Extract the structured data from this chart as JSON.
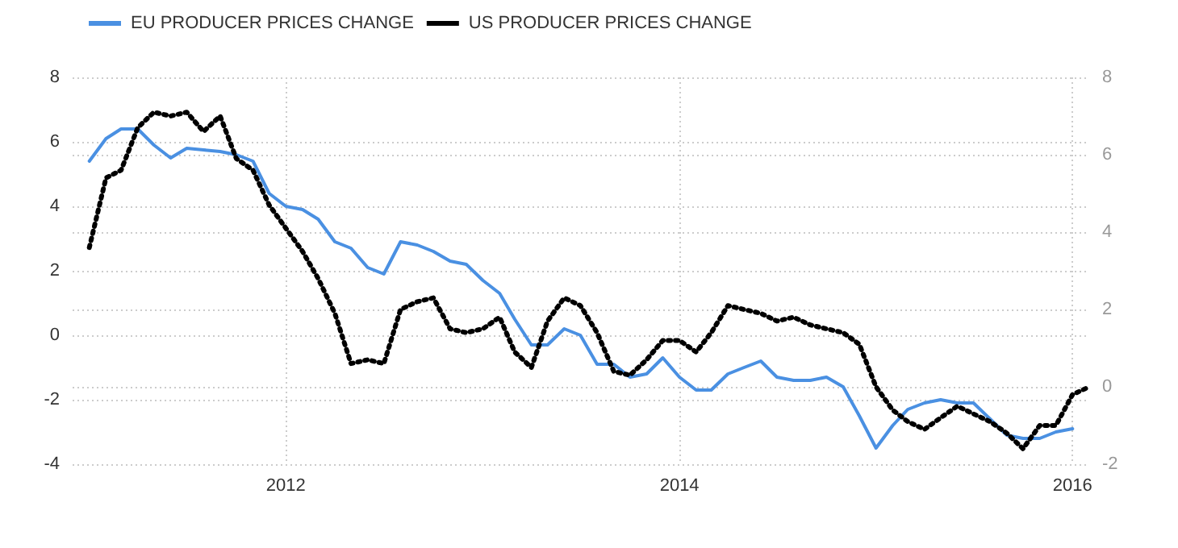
{
  "chart_data": {
    "type": "line",
    "x": [
      "2011-01",
      "2011-02",
      "2011-03",
      "2011-04",
      "2011-05",
      "2011-06",
      "2011-07",
      "2011-08",
      "2011-09",
      "2011-10",
      "2011-11",
      "2011-12",
      "2012-01",
      "2012-02",
      "2012-03",
      "2012-04",
      "2012-05",
      "2012-06",
      "2012-07",
      "2012-08",
      "2012-09",
      "2012-10",
      "2012-11",
      "2012-12",
      "2013-01",
      "2013-02",
      "2013-03",
      "2013-04",
      "2013-05",
      "2013-06",
      "2013-07",
      "2013-08",
      "2013-09",
      "2013-10",
      "2013-11",
      "2013-12",
      "2014-01",
      "2014-02",
      "2014-03",
      "2014-04",
      "2014-05",
      "2014-06",
      "2014-07",
      "2014-08",
      "2014-09",
      "2014-10",
      "2014-11",
      "2014-12",
      "2015-01",
      "2015-02",
      "2015-03",
      "2015-04",
      "2015-05",
      "2015-06",
      "2015-07",
      "2015-08",
      "2015-09",
      "2015-10",
      "2015-11",
      "2015-12",
      "2016-01",
      "2016-02"
    ],
    "series": [
      {
        "name": "EU PRODUCER PRICES CHANGE",
        "color": "#4a90e2",
        "line_style": "solid",
        "values": [
          5.4,
          6.1,
          6.4,
          6.4,
          5.9,
          5.5,
          5.8,
          5.75,
          5.7,
          5.6,
          5.4,
          4.4,
          4.0,
          3.9,
          3.6,
          2.9,
          2.7,
          2.1,
          1.9,
          2.9,
          2.8,
          2.6,
          2.3,
          2.2,
          1.7,
          1.3,
          0.5,
          -0.3,
          -0.3,
          0.2,
          0.0,
          -0.9,
          -0.9,
          -1.3,
          -1.2,
          -0.7,
          -1.3,
          -1.7,
          -1.7,
          -1.2,
          -1.0,
          -0.8,
          -1.3,
          -1.4,
          -1.4,
          -1.3,
          -1.6,
          -2.5,
          -3.5,
          -2.8,
          -2.3,
          -2.1,
          -2.0,
          -2.1,
          -2.1,
          -2.6,
          -3.1,
          -3.2,
          -3.2,
          -3.0,
          -2.9,
          null
        ]
      },
      {
        "name": "US PRODUCER PRICES CHANGE",
        "color": "#000000",
        "axis": "y2",
        "line_style": "dotted",
        "values": [
          3.6,
          5.4,
          5.6,
          6.7,
          7.1,
          7.0,
          7.1,
          6.6,
          7.0,
          5.9,
          5.6,
          4.7,
          4.1,
          3.5,
          2.8,
          1.9,
          0.6,
          0.7,
          0.6,
          2.0,
          2.2,
          2.3,
          1.5,
          1.4,
          1.5,
          1.8,
          0.9,
          0.5,
          1.7,
          2.3,
          2.1,
          1.4,
          0.4,
          0.3,
          0.7,
          1.2,
          1.2,
          0.9,
          1.4,
          2.1,
          2.0,
          1.9,
          1.7,
          1.8,
          1.6,
          1.5,
          1.4,
          1.1,
          0.0,
          -0.6,
          -0.9,
          -1.1,
          -0.8,
          -0.5,
          -0.7,
          -0.9,
          -1.2,
          -1.6,
          -1.0,
          -1.0,
          -0.2,
          0.0
        ]
      }
    ],
    "xlim": [
      "2010-12",
      "2016-02"
    ],
    "xticks": [
      "2012",
      "2014",
      "2016"
    ],
    "ylim": [
      -4,
      8
    ],
    "yticks": [
      -4,
      -2,
      0,
      2,
      4,
      6,
      8
    ],
    "y2lim": [
      -2,
      8
    ],
    "y2ticks": [
      -2,
      0,
      2,
      4,
      6,
      8
    ],
    "grid": true,
    "legend": "top left",
    "marker": "none"
  }
}
